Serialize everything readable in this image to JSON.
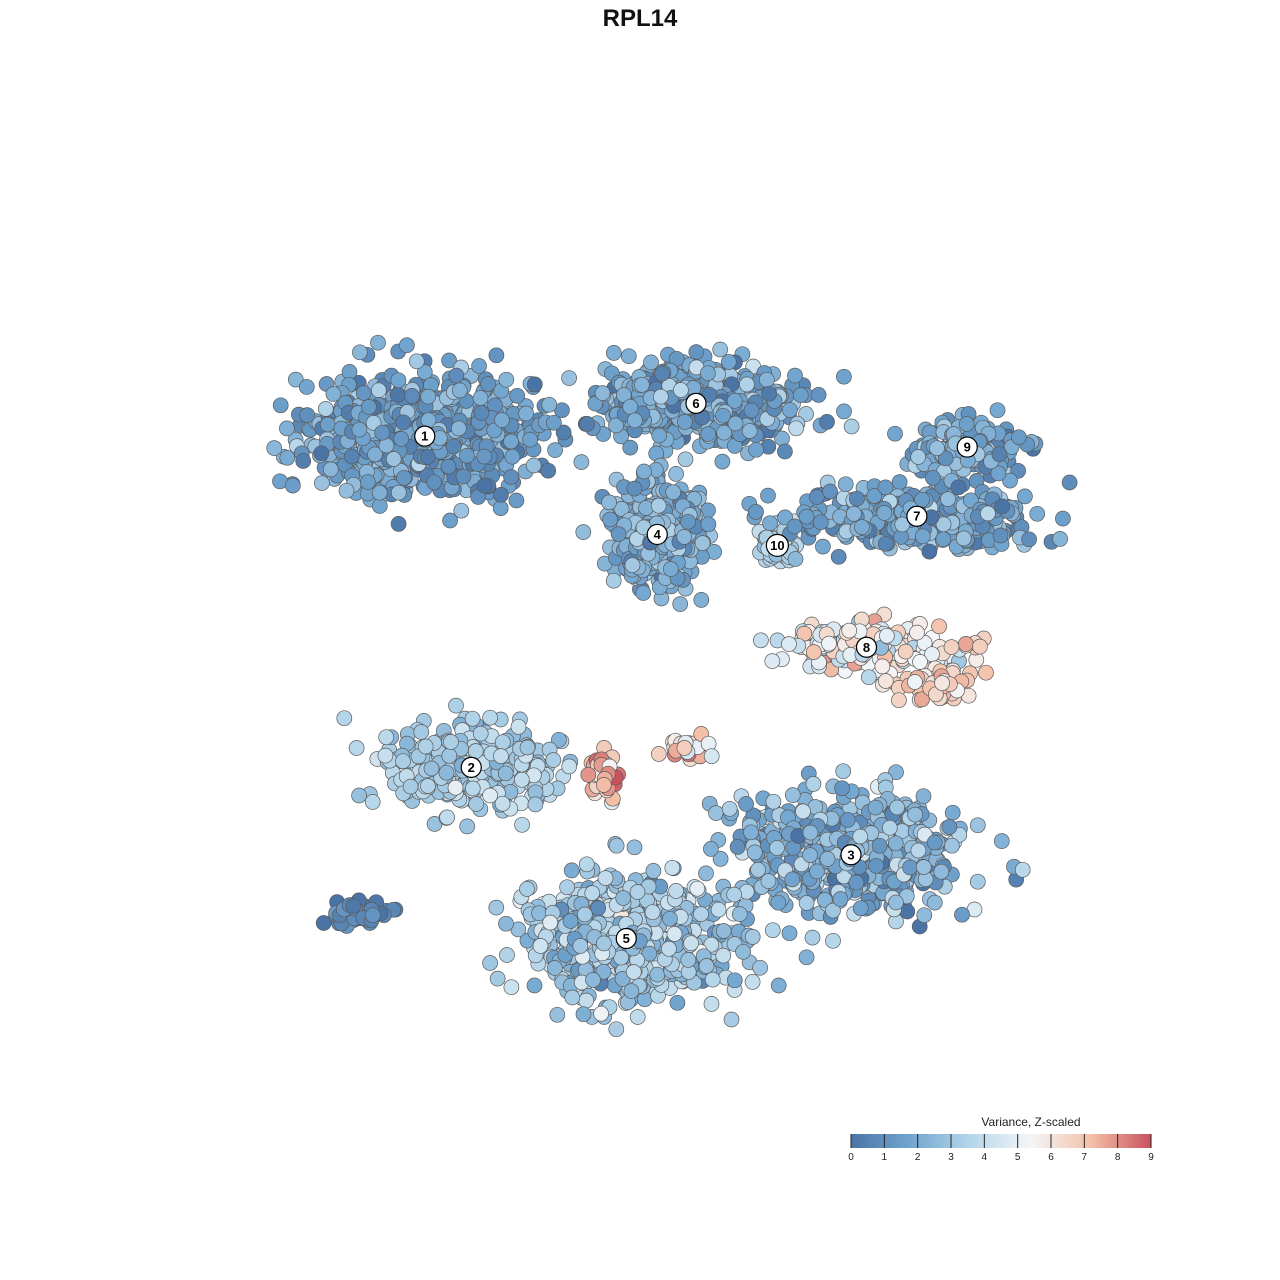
{
  "chart_data": {
    "type": "scatter",
    "title": "RPL14",
    "xlabel": "",
    "ylabel": "",
    "grid": false,
    "axes_visible": false,
    "color_scale": {
      "title": "Variance, Z-scaled",
      "min": 0,
      "max": 9,
      "ticks": [
        0,
        1,
        2,
        3,
        4,
        5,
        6,
        7,
        8,
        9
      ],
      "colors": [
        "#4a74a6",
        "#72a6d0",
        "#b6d6ea",
        "#f4f6f8",
        "#f3c0a8",
        "#c9525e"
      ]
    },
    "legend_position": "bottom-right",
    "clusters": [
      {
        "label": "1",
        "x": -6.2,
        "y": 6.1,
        "n": 900,
        "sx": 2.5,
        "sy": 1.45,
        "value": 1.6,
        "spread": 0.8
      },
      {
        "label": "6",
        "x": 0.8,
        "y": 7.0,
        "n": 700,
        "sx": 2.2,
        "sy": 0.95,
        "value": 1.8,
        "spread": 0.8
      },
      {
        "label": "4",
        "x": -0.2,
        "y": 3.4,
        "n": 420,
        "sx": 1.05,
        "sy": 1.25,
        "value": 2.1,
        "spread": 0.7
      },
      {
        "label": "10",
        "x": 2.9,
        "y": 3.1,
        "n": 60,
        "sx": 0.4,
        "sy": 0.55,
        "value": 3.6,
        "spread": 0.5
      },
      {
        "label": "9",
        "x": 7.8,
        "y": 5.8,
        "n": 160,
        "sx": 1.3,
        "sy": 0.7,
        "value": 1.7,
        "spread": 0.8
      },
      {
        "label": "7",
        "x": 6.5,
        "y": 3.9,
        "n": 350,
        "sx": 2.8,
        "sy": 0.75,
        "value": 1.8,
        "spread": 0.8
      },
      {
        "label": "8",
        "x": 5.2,
        "y": 0.3,
        "n": 220,
        "sx": 2.0,
        "sy": 0.55,
        "value": 5.4,
        "spread": 1.2
      },
      {
        "label": "2",
        "x": -5.0,
        "y": -3.0,
        "n": 320,
        "sx": 2.0,
        "sy": 1.0,
        "value": 3.3,
        "spread": 0.6
      },
      {
        "label": "3",
        "x": 4.8,
        "y": -5.4,
        "n": 600,
        "sx": 2.6,
        "sy": 1.45,
        "value": 2.2,
        "spread": 1.0
      },
      {
        "label": "5",
        "x": -1.0,
        "y": -7.7,
        "n": 650,
        "sx": 2.4,
        "sy": 1.55,
        "value": 3.0,
        "spread": 0.9
      },
      {
        "label": "",
        "x": -7.8,
        "y": -7.0,
        "n": 45,
        "sx": 0.8,
        "sy": 0.35,
        "value": 0.6,
        "spread": 0.4
      }
    ],
    "hotspots": [
      {
        "x": -1.6,
        "y": -3.2,
        "n": 40,
        "sx": 0.35,
        "sy": 0.55,
        "value": 7.3,
        "spread": 1.0
      },
      {
        "x": 0.6,
        "y": -2.4,
        "n": 25,
        "sx": 0.5,
        "sy": 0.4,
        "value": 6.3,
        "spread": 1.0
      },
      {
        "x": 7.0,
        "y": -0.7,
        "n": 60,
        "sx": 0.9,
        "sy": 0.4,
        "value": 6.6,
        "spread": 0.8
      }
    ],
    "xlim": [
      -12,
      12
    ],
    "ylim": [
      -12,
      13
    ]
  }
}
